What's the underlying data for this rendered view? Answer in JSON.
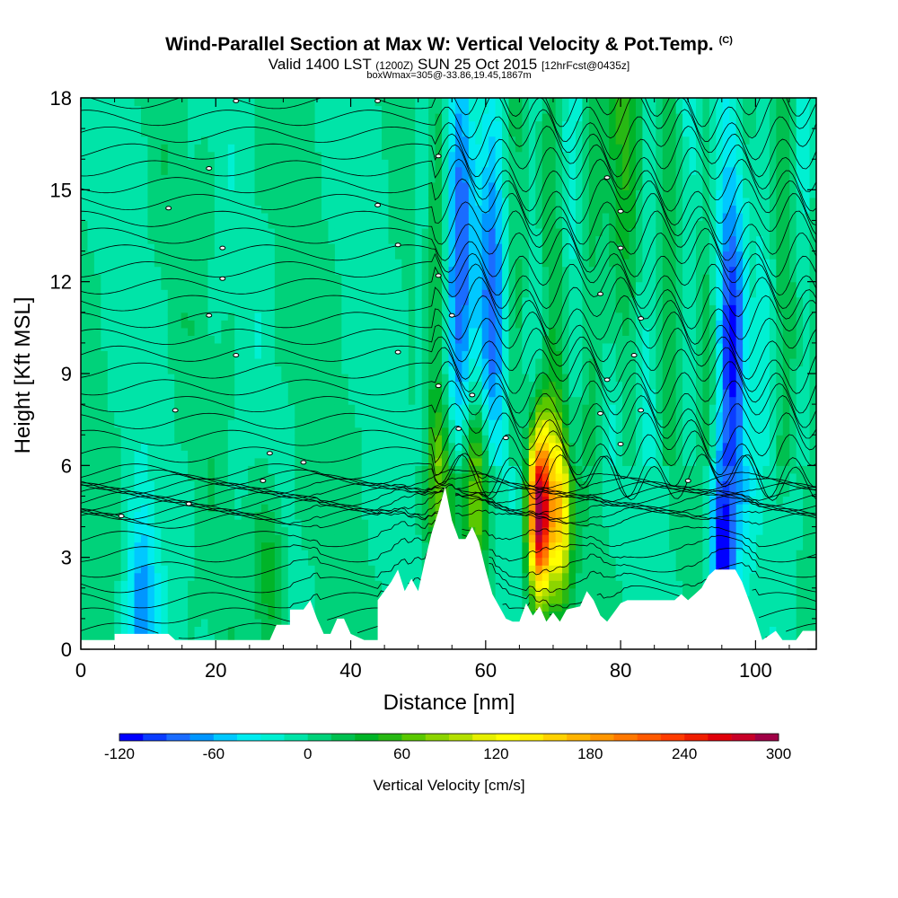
{
  "header": {
    "title": "Wind-Parallel Section at Max W: Vertical Velocity & Pot.Temp.",
    "title_mark": "(C)",
    "valid_prefix": "Valid 1400 LST",
    "valid_zulu": "(1200Z)",
    "valid_date": "SUN 25 Oct 2015",
    "valid_fcst": "[12hrFcst@0435z]",
    "boxinfo": "boxWmax=305@-33.86,19.45,1867m"
  },
  "chart_data": {
    "type": "heatmap",
    "xlabel": "Distance [nm]",
    "ylabel": "Height [Kft MSL]",
    "xlim": [
      0,
      109
    ],
    "ylim": [
      0,
      18
    ],
    "x_ticks": [
      "0",
      "20",
      "40",
      "60",
      "80",
      "100"
    ],
    "y_ticks": [
      "0",
      "3",
      "6",
      "9",
      "12",
      "15",
      "18"
    ],
    "grid": false,
    "colorbar": {
      "label": "Vertical Velocity [cm/s]",
      "tick_labels": [
        "-120",
        "-60",
        "0",
        "60",
        "120",
        "180",
        "240",
        "300"
      ],
      "levels": [
        -120,
        -105,
        -90,
        -75,
        -60,
        -45,
        -30,
        -15,
        0,
        15,
        30,
        45,
        60,
        75,
        90,
        105,
        120,
        135,
        150,
        165,
        180,
        195,
        210,
        225,
        240,
        255,
        270,
        285,
        300
      ],
      "colors": [
        "#0000ff",
        "#0a3cff",
        "#1a6cff",
        "#0096ff",
        "#00c8ff",
        "#00ecf0",
        "#00f0d2",
        "#00e4a8",
        "#00d27a",
        "#00c050",
        "#00b428",
        "#28b814",
        "#5ac800",
        "#8cd400",
        "#b4e000",
        "#e6f000",
        "#ffff00",
        "#fff000",
        "#ffd200",
        "#ffb400",
        "#ff9600",
        "#ff7800",
        "#ff5a00",
        "#ff3c00",
        "#f01e00",
        "#e0000a",
        "#c80028",
        "#a00046"
      ],
      "placement": "bottom"
    },
    "terrain": [
      [
        0,
        0.3
      ],
      [
        5,
        0.3
      ],
      [
        5,
        0.5
      ],
      [
        13,
        0.5
      ],
      [
        14,
        0.3
      ],
      [
        28,
        0.3
      ],
      [
        29,
        0.8
      ],
      [
        31,
        0.8
      ],
      [
        31,
        1.3
      ],
      [
        33,
        1.3
      ],
      [
        34,
        1.6
      ],
      [
        35,
        1.0
      ],
      [
        36,
        0.5
      ],
      [
        37,
        0.5
      ],
      [
        38,
        1.0
      ],
      [
        39,
        1.0
      ],
      [
        40,
        0.5
      ],
      [
        42,
        0.3
      ],
      [
        44,
        0.3
      ],
      [
        44,
        1.6
      ],
      [
        46,
        2.2
      ],
      [
        47,
        2.6
      ],
      [
        48,
        1.9
      ],
      [
        49,
        2.3
      ],
      [
        50,
        1.9
      ],
      [
        51,
        2.9
      ],
      [
        52,
        3.8
      ],
      [
        53,
        4.5
      ],
      [
        54,
        5.3
      ],
      [
        55,
        4.2
      ],
      [
        56,
        3.6
      ],
      [
        57,
        3.6
      ],
      [
        58,
        4.0
      ],
      [
        59,
        3.5
      ],
      [
        60,
        2.6
      ],
      [
        61,
        1.8
      ],
      [
        62,
        1.4
      ],
      [
        63,
        1.0
      ],
      [
        64,
        0.9
      ],
      [
        65,
        0.9
      ],
      [
        66,
        1.5
      ],
      [
        67,
        1.1
      ],
      [
        68,
        1.4
      ],
      [
        69,
        0.9
      ],
      [
        70,
        1.2
      ],
      [
        71,
        0.9
      ],
      [
        72,
        1.3
      ],
      [
        74,
        1.4
      ],
      [
        75,
        1.9
      ],
      [
        76,
        1.6
      ],
      [
        77,
        1.1
      ],
      [
        78,
        0.9
      ],
      [
        79,
        1.2
      ],
      [
        80,
        1.5
      ],
      [
        81,
        1.6
      ],
      [
        88,
        1.6
      ],
      [
        89,
        1.8
      ],
      [
        90,
        1.6
      ],
      [
        91,
        1.8
      ],
      [
        92,
        2.0
      ],
      [
        93,
        2.4
      ],
      [
        94,
        2.6
      ],
      [
        97,
        2.6
      ],
      [
        98,
        2.2
      ],
      [
        99,
        1.6
      ],
      [
        100,
        1.0
      ],
      [
        101,
        0.3
      ],
      [
        103,
        0.6
      ],
      [
        104,
        0.3
      ],
      [
        106,
        0.3
      ],
      [
        107,
        0.6
      ],
      [
        109,
        0.6
      ]
    ],
    "updrafts": [
      {
        "x": 68,
        "y": 4.5,
        "value": 300
      },
      {
        "x": 71,
        "y": 4.5,
        "value": 150
      },
      {
        "x": 58.5,
        "y": 5.2,
        "value": 90
      },
      {
        "x": 53,
        "y": 5.0,
        "value": 60
      },
      {
        "x": 79,
        "y": 16.5,
        "value": 60
      },
      {
        "x": 28,
        "y": 2.5,
        "value": 45
      }
    ],
    "downdrafts": [
      {
        "x": 56.5,
        "y": 12.0,
        "value": -75
      },
      {
        "x": 60.5,
        "y": 11.5,
        "value": -60
      },
      {
        "x": 95,
        "y": 3.2,
        "value": -120
      },
      {
        "x": 97,
        "y": 9.5,
        "value": -90
      },
      {
        "x": 9,
        "y": 1.2,
        "value": -75
      }
    ]
  }
}
